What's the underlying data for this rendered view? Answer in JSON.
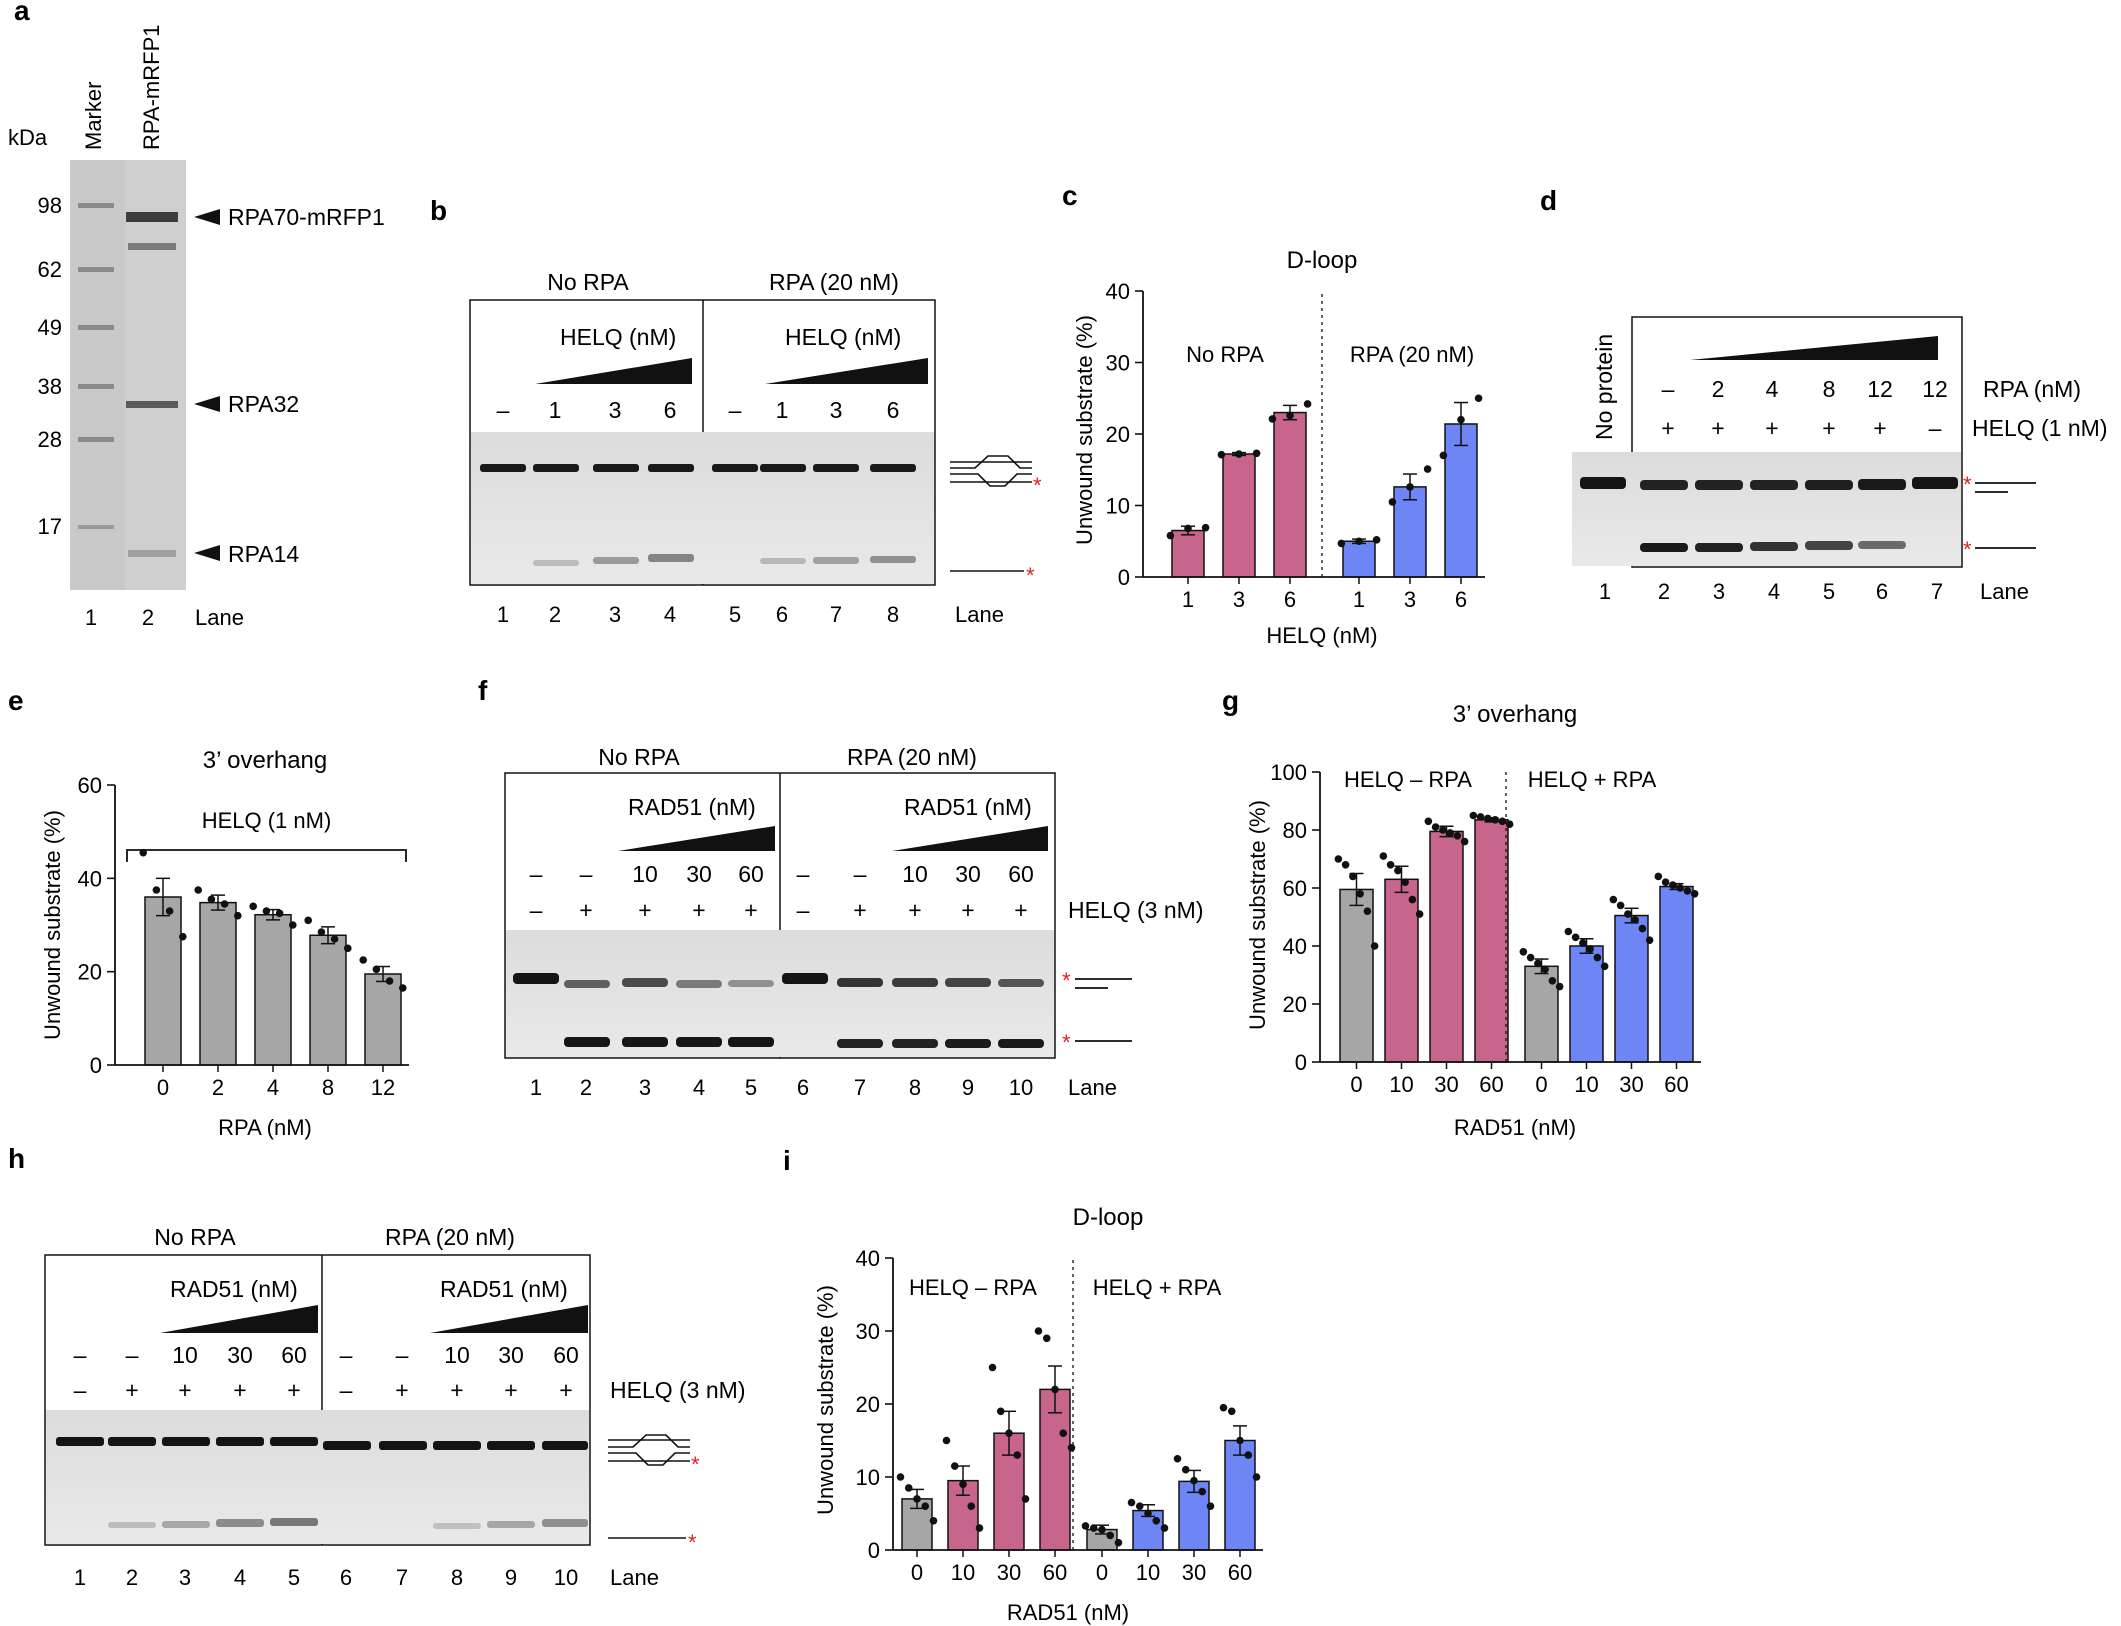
{
  "colors": {
    "grey": "#a6a6a6",
    "pink": "#c8658c",
    "blue": "#6e86f5",
    "gel_bg": "#e8e8e8",
    "band": "#141414",
    "star": "#dd2222"
  },
  "panel_a": {
    "letter": "a",
    "unit": "kDa",
    "col_labels": [
      "Marker",
      "RPA-mRFP1"
    ],
    "markers": [
      "98",
      "62",
      "49",
      "38",
      "28",
      "17"
    ],
    "arrows": [
      "RPA70-mRFP1",
      "RPA32",
      "RPA14"
    ],
    "lanes": [
      "1",
      "2"
    ],
    "lane_word": "Lane"
  },
  "panel_b": {
    "letter": "b",
    "left_title": "No RPA",
    "right_title": "RPA (20 nM)",
    "helq": "HELQ (nM)",
    "conc": [
      "–",
      "1",
      "3",
      "6"
    ],
    "lanes": [
      "1",
      "2",
      "3",
      "4",
      "5",
      "6",
      "7",
      "8"
    ],
    "lane_word": "Lane"
  },
  "panel_d": {
    "letter": "d",
    "no_protein": "No protein",
    "rpa_row": [
      "–",
      "2",
      "4",
      "8",
      "12",
      "12"
    ],
    "rpa_label": "RPA (nM)",
    "helq_row": [
      "+",
      "+",
      "+",
      "+",
      "+",
      "–"
    ],
    "helq_label": "HELQ (1 nM)",
    "lanes": [
      "1",
      "2",
      "3",
      "4",
      "5",
      "6",
      "7"
    ],
    "lane_word": "Lane"
  },
  "panel_f": {
    "letter": "f",
    "left_title": "No RPA",
    "right_title": "RPA (20 nM)",
    "rad51": "RAD51 (nM)",
    "rad_row": [
      "–",
      "–",
      "10",
      "30",
      "60"
    ],
    "helq_row": [
      "–",
      "+",
      "+",
      "+",
      "+"
    ],
    "helq_label": "HELQ (3 nM)",
    "lanes": [
      "1",
      "2",
      "3",
      "4",
      "5",
      "6",
      "7",
      "8",
      "9",
      "10"
    ],
    "lane_word": "Lane"
  },
  "panel_h": {
    "letter": "h",
    "left_title": "No RPA",
    "right_title": "RPA (20 nM)",
    "rad51": "RAD51 (nM)",
    "rad_row": [
      "–",
      "–",
      "10",
      "30",
      "60"
    ],
    "helq_row": [
      "–",
      "+",
      "+",
      "+",
      "+"
    ],
    "helq_label": "HELQ (3 nM)",
    "lanes": [
      "1",
      "2",
      "3",
      "4",
      "5",
      "6",
      "7",
      "8",
      "9",
      "10"
    ],
    "lane_word": "Lane"
  },
  "chart_data": [
    {
      "id": "c",
      "letter": "c",
      "type": "bar",
      "title": "D-loop",
      "ylabel": "Unwound substrate (%)",
      "xlabel": "HELQ (nM)",
      "ylim": [
        0,
        40
      ],
      "yticks": [
        0,
        10,
        20,
        30,
        40
      ],
      "groups": [
        {
          "label": "No RPA",
          "color": "pink",
          "categories": [
            "1",
            "3",
            "6"
          ],
          "values": [
            6.5,
            17.2,
            23.0
          ],
          "errors": [
            0.6,
            0.2,
            1.0
          ],
          "points": [
            [
              5.8,
              6.8,
              6.9
            ],
            [
              17.1,
              17.2,
              17.3
            ],
            [
              22.1,
              22.6,
              24.2
            ]
          ]
        },
        {
          "label": "RPA (20 nM)",
          "color": "blue",
          "categories": [
            "1",
            "3",
            "6"
          ],
          "values": [
            5.0,
            12.6,
            21.4
          ],
          "errors": [
            0.3,
            1.8,
            3.0
          ],
          "points": [
            [
              4.7,
              5.0,
              5.2
            ],
            [
              10.5,
              12.6,
              15.1
            ],
            [
              17.0,
              22.0,
              25.0
            ]
          ]
        }
      ]
    },
    {
      "id": "e",
      "letter": "e",
      "type": "bar",
      "title": "3’ overhang",
      "ylabel": "Unwound substrate (%)",
      "xlabel": "RPA (nM)",
      "ylim": [
        0,
        60
      ],
      "yticks": [
        0,
        20,
        40,
        60
      ],
      "bracket_label": "HELQ (1 nM)",
      "groups": [
        {
          "label": "",
          "color": "grey",
          "categories": [
            "0",
            "2",
            "4",
            "8",
            "12"
          ],
          "values": [
            36.0,
            34.8,
            32.2,
            27.8,
            19.5
          ],
          "errors": [
            4.0,
            1.6,
            1.1,
            1.8,
            1.6
          ],
          "points": [
            [
              45.5,
              37.5,
              33.0,
              27.5
            ],
            [
              37.5,
              35.5,
              34.5,
              32.0
            ],
            [
              34.0,
              33.0,
              32.5,
              30.0
            ],
            [
              31.0,
              28.5,
              27.0,
              25.0
            ],
            [
              22.5,
              20.5,
              18.0,
              16.5
            ]
          ]
        }
      ]
    },
    {
      "id": "g",
      "letter": "g",
      "type": "bar",
      "title": "3’ overhang",
      "ylabel": "Unwound substrate (%)",
      "xlabel": "RAD51 (nM)",
      "ylim": [
        0,
        100
      ],
      "yticks": [
        0,
        20,
        40,
        60,
        80,
        100
      ],
      "groups": [
        {
          "label": "HELQ – RPA",
          "categories": [
            "0",
            "10",
            "30",
            "60"
          ],
          "colors": [
            "grey",
            "pink",
            "pink",
            "pink"
          ],
          "values": [
            59.5,
            63.0,
            79.5,
            83.5
          ],
          "errors": [
            5.5,
            4.5,
            1.8,
            0.7
          ],
          "points": [
            [
              70.0,
              68.0,
              64.0,
              58.0,
              52.0,
              40.0
            ],
            [
              71.0,
              68.0,
              66.0,
              62.0,
              56.0,
              51.0
            ],
            [
              83.0,
              81.0,
              80.0,
              79.0,
              78.0,
              76.0
            ],
            [
              85.0,
              84.5,
              84.0,
              83.5,
              83.0,
              82.0
            ]
          ]
        },
        {
          "label": "HELQ + RPA",
          "categories": [
            "0",
            "10",
            "30",
            "60"
          ],
          "colors": [
            "grey",
            "blue",
            "blue",
            "blue"
          ],
          "values": [
            33.0,
            40.0,
            50.5,
            60.5
          ],
          "errors": [
            2.5,
            2.5,
            2.5,
            1.0
          ],
          "points": [
            [
              38.0,
              36.0,
              34.0,
              32.0,
              28.0,
              26.0
            ],
            [
              45.0,
              43.0,
              41.0,
              39.0,
              36.0,
              33.0
            ],
            [
              56.0,
              54.0,
              51.0,
              49.0,
              46.0,
              42.0
            ],
            [
              64.0,
              62.0,
              61.0,
              60.0,
              59.0,
              58.0
            ]
          ]
        }
      ]
    },
    {
      "id": "i",
      "letter": "i",
      "type": "bar",
      "title": "D-loop",
      "ylabel": "Unwound substrate (%)",
      "xlabel": "RAD51 (nM)",
      "ylim": [
        0,
        40
      ],
      "yticks": [
        0,
        10,
        20,
        30,
        40
      ],
      "groups": [
        {
          "label": "HELQ – RPA",
          "categories": [
            "0",
            "10",
            "30",
            "60"
          ],
          "colors": [
            "grey",
            "pink",
            "pink",
            "pink"
          ],
          "values": [
            7.0,
            9.5,
            16.0,
            22.0
          ],
          "errors": [
            1.3,
            2.0,
            3.0,
            3.2
          ],
          "points": [
            [
              10.0,
              8.5,
              7.0,
              6.0,
              4.0
            ],
            [
              15.0,
              11.5,
              9.0,
              6.0,
              3.0
            ],
            [
              25.0,
              19.0,
              16.0,
              13.0,
              7.0
            ],
            [
              30.0,
              29.0,
              22.0,
              16.0,
              14.0
            ]
          ]
        },
        {
          "label": "HELQ + RPA",
          "categories": [
            "0",
            "10",
            "30",
            "60"
          ],
          "colors": [
            "grey",
            "blue",
            "blue",
            "blue"
          ],
          "values": [
            2.8,
            5.4,
            9.4,
            15.0
          ],
          "errors": [
            0.6,
            0.8,
            1.5,
            2.0
          ],
          "points": [
            [
              3.3,
              3.0,
              2.8,
              2.0,
              1.0
            ],
            [
              6.5,
              6.0,
              5.0,
              4.0,
              3.0
            ],
            [
              12.5,
              11.0,
              9.5,
              8.0,
              6.0
            ],
            [
              19.5,
              19.0,
              15.0,
              13.0,
              10.0
            ]
          ]
        }
      ]
    }
  ]
}
